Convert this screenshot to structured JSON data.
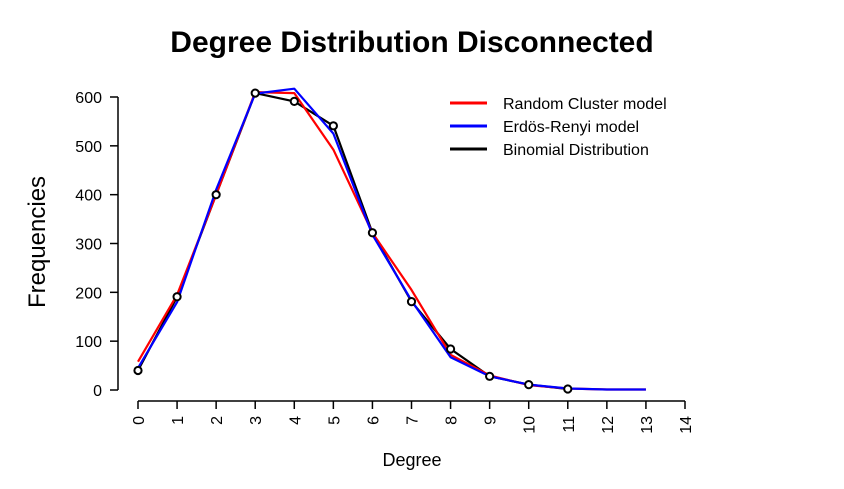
{
  "chart_data": {
    "type": "line",
    "title": "Degree Distribution Disconnected",
    "xlabel": "Degree",
    "ylabel": "Frequencies",
    "xlim": [
      0,
      14
    ],
    "ylim": [
      0,
      600
    ],
    "x_ticks": [
      "0",
      "1",
      "2",
      "3",
      "4",
      "5",
      "6",
      "7",
      "8",
      "9",
      "10",
      "11",
      "12",
      "13",
      "14"
    ],
    "y_ticks": [
      "0",
      "100",
      "200",
      "300",
      "400",
      "500",
      "600"
    ],
    "grid": false,
    "legend_position": "top-right",
    "series": [
      {
        "name": "Random Cluster model",
        "color": "#ff0000",
        "x": [
          0,
          1,
          2,
          3,
          4,
          5,
          6,
          7,
          8,
          9,
          10,
          11,
          12,
          13
        ],
        "values": [
          58,
          195,
          400,
          610,
          608,
          492,
          322,
          205,
          72,
          30,
          10,
          3,
          1,
          1
        ]
      },
      {
        "name": "Erdös-Renyi model",
        "color": "#0000ff",
        "x": [
          0,
          1,
          2,
          3,
          4,
          5,
          6,
          7,
          8,
          9,
          10,
          11,
          12,
          13
        ],
        "values": [
          45,
          180,
          410,
          607,
          617,
          525,
          318,
          183,
          67,
          28,
          11,
          3,
          1,
          1
        ]
      },
      {
        "name": "Binomial Distribution",
        "color": "#000000",
        "markers": true,
        "x": [
          0,
          1,
          2,
          3,
          4,
          5,
          6,
          7,
          8,
          9,
          10,
          11
        ],
        "values": [
          40,
          191,
          400,
          608,
          591,
          541,
          322,
          181,
          84,
          28,
          11,
          2
        ]
      }
    ]
  }
}
